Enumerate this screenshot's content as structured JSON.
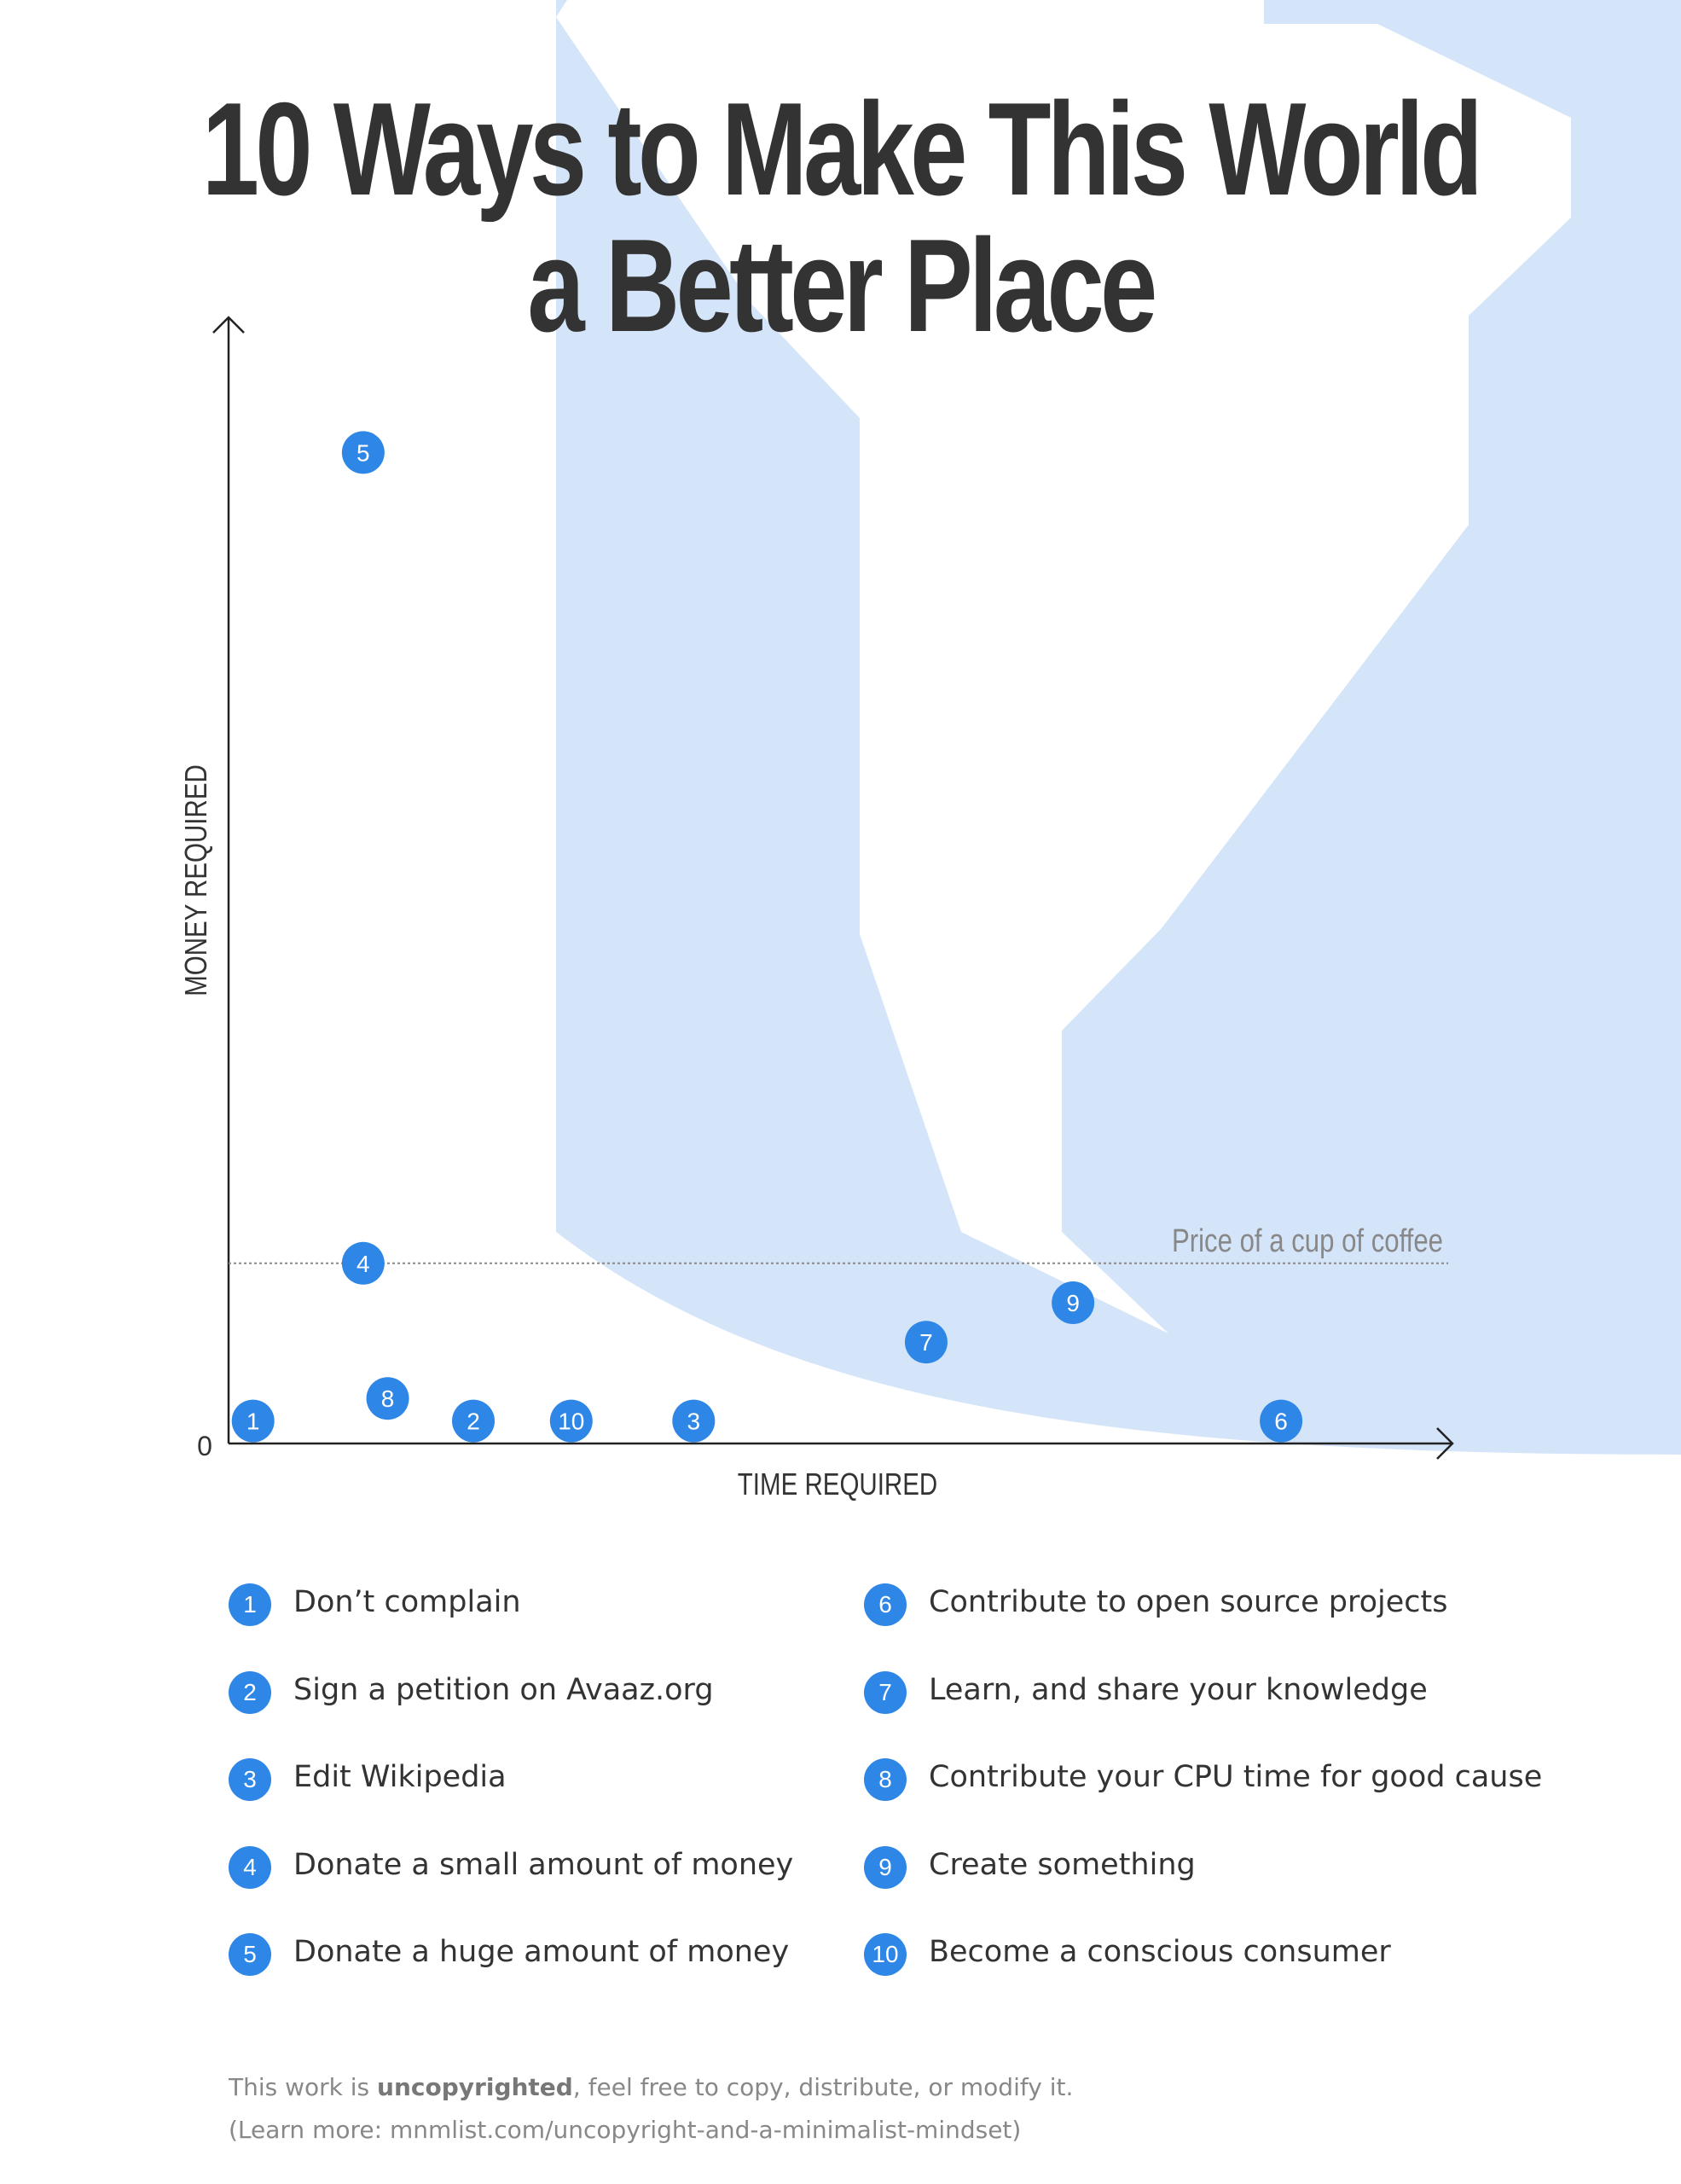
{
  "title": {
    "line1": "10 Ways to Make This World",
    "line2": "a Better Place"
  },
  "colors": {
    "accent": "#2e86e6",
    "background_shape": "#d4e5f9",
    "text": "#333333",
    "muted_text": "#888888",
    "reference_line": "#888888"
  },
  "chart_data": {
    "type": "scatter",
    "xlabel": "TIME REQUIRED",
    "ylabel": "MONEY REQUIRED",
    "origin_label": "0",
    "xlim": [
      0,
      100
    ],
    "ylim": [
      0,
      100
    ],
    "grid": false,
    "points": [
      {
        "label": "1",
        "x": 2,
        "y": 2
      },
      {
        "label": "2",
        "x": 20,
        "y": 2
      },
      {
        "label": "3",
        "x": 38,
        "y": 2
      },
      {
        "label": "4",
        "x": 11,
        "y": 16
      },
      {
        "label": "5",
        "x": 11,
        "y": 88
      },
      {
        "label": "6",
        "x": 86,
        "y": 2
      },
      {
        "label": "7",
        "x": 57,
        "y": 9
      },
      {
        "label": "8",
        "x": 13,
        "y": 4
      },
      {
        "label": "9",
        "x": 69,
        "y": 12.5
      },
      {
        "label": "10",
        "x": 28,
        "y": 2
      }
    ],
    "reference_line": {
      "label": "Price of a cup of coffee",
      "y": 16
    }
  },
  "legend": [
    {
      "num": "1",
      "text": "Don’t complain"
    },
    {
      "num": "2",
      "text": "Sign a petition on Avaaz.org"
    },
    {
      "num": "3",
      "text": "Edit Wikipedia"
    },
    {
      "num": "4",
      "text": "Donate a small amount of money"
    },
    {
      "num": "5",
      "text": "Donate a huge amount of money"
    },
    {
      "num": "6",
      "text": "Contribute to open source projects"
    },
    {
      "num": "7",
      "text": "Learn, and share your knowledge"
    },
    {
      "num": "8",
      "text": "Contribute your CPU time for good cause"
    },
    {
      "num": "9",
      "text": "Create something"
    },
    {
      "num": "10",
      "text": "Become a conscious consumer"
    }
  ],
  "footer": {
    "prefix": "This work is ",
    "bold": "uncopyrighted",
    "suffix": ", feel free to copy, distribute, or modify it.",
    "line2": "(Learn more: mnmlist.com/uncopyright-and-a-minimalist-mindset)"
  }
}
